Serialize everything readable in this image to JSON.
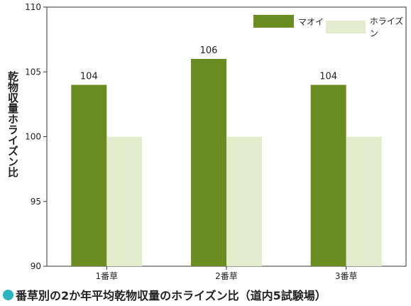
{
  "chart_data": {
    "type": "bar",
    "title": "",
    "xlabel": "",
    "ylabel": "乾物収量ホライズン比",
    "categories": [
      "1番草",
      "2番草",
      "3番草"
    ],
    "series": [
      {
        "name": "マオイ",
        "values": [
          104,
          106,
          104
        ],
        "color": "#6b8c21"
      },
      {
        "name": "ホライズン",
        "values": [
          100,
          100,
          100
        ],
        "color": "#e3eccc"
      }
    ],
    "data_labels": [
      "104",
      "106",
      "104"
    ],
    "ylim": [
      90,
      110
    ],
    "yticks": [
      90,
      95,
      100,
      105,
      110
    ],
    "grid": false,
    "legend": "top-right"
  },
  "caption": {
    "text": "番草別の2か年平均乾物収量のホライズン比（道内5試験場）",
    "dot_color": "#2ab5c0"
  }
}
